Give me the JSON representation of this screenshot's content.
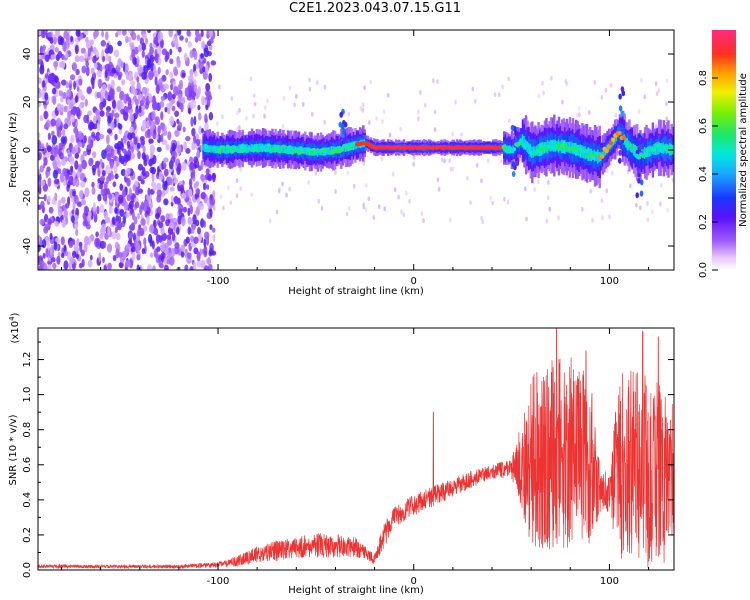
{
  "title": "C2E1.2023.043.07.15.G11",
  "colors": {
    "snr_line": "#ee3333",
    "axis": "#000000"
  },
  "chart_data": [
    {
      "type": "heatmap",
      "xlabel": "Height of straight line (km)",
      "ylabel": "Frequency (Hz)",
      "xlim": [
        -192,
        133
      ],
      "ylim": [
        -50,
        50
      ],
      "xticks": [
        -100,
        0,
        100
      ],
      "xtick_labels": [
        "-100",
        "0",
        "100"
      ],
      "yticks": [
        -40,
        -20,
        0,
        20,
        40
      ],
      "ytick_labels": [
        "-40",
        "-20",
        "0",
        "20",
        "40"
      ],
      "colorbar": {
        "label": "Normalized spectral amplitude",
        "range": [
          0,
          1
        ],
        "ticks": [
          0.0,
          0.2,
          0.4,
          0.6,
          0.8
        ],
        "tick_labels": [
          "0.0",
          "0.2",
          "0.4",
          "0.6",
          "0.8"
        ],
        "colormap": "rainbow"
      },
      "band_ridge": {
        "x": [
          -108,
          -100,
          -80,
          -60,
          -50,
          -40,
          -30,
          -25,
          -20,
          -10,
          0,
          10,
          20,
          30,
          40,
          45,
          50,
          55,
          60,
          70,
          80,
          90,
          95,
          100,
          103,
          105,
          108,
          115,
          125,
          133
        ],
        "y": [
          1,
          0,
          1,
          0,
          -1,
          0,
          2,
          3,
          1,
          1,
          1,
          1,
          1,
          1,
          1,
          1,
          0,
          4,
          -1,
          2,
          1,
          -2,
          -3,
          2,
          5,
          8,
          3,
          -2,
          1,
          0
        ]
      },
      "noise_region": {
        "x_range": [
          -192,
          -102
        ],
        "y_range": [
          -50,
          50
        ]
      },
      "spikes": [
        {
          "x": -36,
          "y_range": [
            0,
            16
          ]
        },
        {
          "x": 52,
          "y_range": [
            -12,
            10
          ]
        },
        {
          "x": 106,
          "y_range": [
            -5,
            28
          ]
        },
        {
          "x": 115,
          "y_range": [
            -20,
            6
          ]
        }
      ]
    },
    {
      "type": "line",
      "xlabel": "Height of straight line (km)",
      "ylabel": "SNR (10 * v/v)",
      "y_multiplier_label": "(x10",
      "y_multiplier_exponent": "4",
      "y_multiplier_close": ")",
      "xlim": [
        -192,
        133
      ],
      "ylim": [
        0,
        1.38
      ],
      "xticks": [
        -100,
        0,
        100
      ],
      "xtick_labels": [
        "-100",
        "0",
        "100"
      ],
      "yticks": [
        0,
        0.2,
        0.4,
        0.6,
        0.8,
        1.0,
        1.2
      ],
      "ytick_labels": [
        "0.0",
        "0.2",
        "0.4",
        "0.6",
        "0.8",
        "1.0",
        "1.2"
      ],
      "series": [
        {
          "envelope_x": [
            -192,
            -120,
            -100,
            -90,
            -80,
            -70,
            -60,
            -50,
            -40,
            -30,
            -25,
            -20,
            -15,
            -10,
            0,
            10,
            20,
            30,
            40,
            50,
            55,
            60,
            70,
            80,
            90,
            95,
            100,
            105,
            110,
            120,
            133
          ],
          "envelope_mean": [
            0.02,
            0.02,
            0.03,
            0.05,
            0.09,
            0.11,
            0.13,
            0.14,
            0.14,
            0.13,
            0.1,
            0.06,
            0.2,
            0.3,
            0.37,
            0.42,
            0.47,
            0.52,
            0.56,
            0.58,
            0.6,
            0.62,
            0.66,
            0.68,
            0.62,
            0.48,
            0.42,
            0.6,
            0.62,
            0.55,
            0.55
          ],
          "envelope_amp": [
            0.01,
            0.01,
            0.015,
            0.03,
            0.05,
            0.06,
            0.06,
            0.07,
            0.07,
            0.06,
            0.04,
            0.03,
            0.07,
            0.06,
            0.06,
            0.06,
            0.05,
            0.05,
            0.04,
            0.06,
            0.25,
            0.5,
            0.55,
            0.55,
            0.5,
            0.15,
            0.1,
            0.55,
            0.55,
            0.55,
            0.5
          ],
          "peaks": [
            {
              "x": 10,
              "y": 0.9
            },
            {
              "x": 73,
              "y": 1.38
            },
            {
              "x": 88,
              "y": 1.25
            },
            {
              "x": 117,
              "y": 1.36
            },
            {
              "x": 125,
              "y": 1.33
            }
          ]
        }
      ]
    }
  ]
}
